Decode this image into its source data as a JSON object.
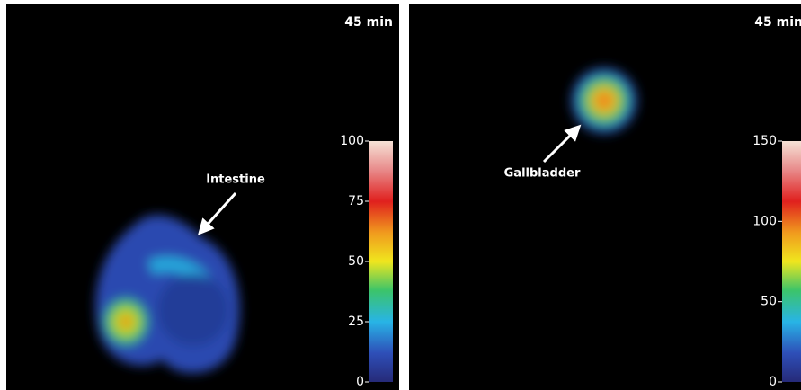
{
  "panels": [
    {
      "time_label": "45 min",
      "annotation": "Intestine",
      "colorbar": {
        "lim": [
          0,
          100
        ],
        "ticks": [
          0,
          25,
          50,
          75,
          100
        ]
      }
    },
    {
      "time_label": "45 min",
      "annotation": "Gallbladder",
      "colorbar": {
        "lim": [
          0,
          150
        ],
        "ticks": [
          0,
          50,
          100,
          150
        ]
      }
    }
  ]
}
